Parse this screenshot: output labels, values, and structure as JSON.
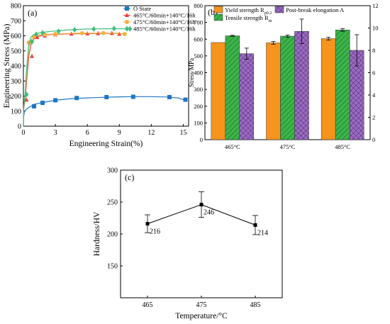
{
  "chart_data": [
    {
      "panel": "(a)",
      "type": "line",
      "xlabel": "Engineering Strain(%)",
      "ylabel": "Engineering Stress (MPa)",
      "xlim": [
        0,
        15.5
      ],
      "ylim": [
        0,
        800
      ],
      "xticks": [
        0,
        3,
        6,
        9,
        12,
        15
      ],
      "yticks": [
        0,
        100,
        200,
        300,
        400,
        500,
        600,
        700,
        800
      ],
      "legend_position": "top-right",
      "series": [
        {
          "name": "O State",
          "color": "#1f77c4",
          "marker": "square",
          "x": [
            0,
            0.02,
            0.1,
            0.3,
            1,
            2,
            3,
            4.5,
            6,
            7.5,
            9,
            10.5,
            12,
            13.5,
            14.5,
            15
          ],
          "y": [
            0,
            60,
            100,
            115,
            145,
            160,
            172,
            183,
            188,
            192,
            195,
            196,
            196,
            194,
            188,
            176
          ],
          "marker_x": [
            1.0,
            1.8,
            3.0,
            5.0,
            7.8,
            10.3,
            13.7,
            15.2
          ],
          "marker_y": [
            132,
            155,
            172,
            187,
            193,
            195,
            193,
            176
          ]
        },
        {
          "name": "465°C/60min+140°C/16h",
          "color": "#e8423a",
          "marker": "triangle",
          "x": [
            0,
            0.03,
            0.15,
            0.3,
            0.5,
            0.7,
            1,
            1.5,
            2,
            3,
            4,
            5,
            6,
            7,
            8,
            9
          ],
          "y": [
            0,
            120,
            170,
            300,
            460,
            540,
            580,
            598,
            605,
            610,
            612,
            614,
            615,
            616,
            617,
            616
          ],
          "marker_x": [
            0.3,
            0.8,
            1.3,
            2.0,
            3.0,
            4.5,
            6.0,
            7.0,
            8.3,
            9.0
          ],
          "marker_y": [
            175,
            465,
            590,
            600,
            608,
            613,
            615,
            616,
            617,
            612
          ]
        },
        {
          "name": "475°C/60min+140°C/16h",
          "color": "#f5b041",
          "marker": "circle",
          "x": [
            0,
            0.03,
            0.15,
            0.3,
            0.5,
            0.7,
            1,
            1.5,
            2,
            3,
            4,
            5,
            6,
            7,
            8,
            9,
            9.5
          ],
          "y": [
            0,
            120,
            200,
            350,
            520,
            570,
            595,
            605,
            608,
            612,
            615,
            617,
            618,
            618,
            618,
            617,
            612
          ],
          "marker_x": [
            0.5,
            1.0,
            2.0,
            3.0,
            5.5,
            7.5,
            9.5
          ],
          "marker_y": [
            555,
            595,
            608,
            612,
            617,
            618,
            612
          ]
        },
        {
          "name": "485°C/60min+140°C/16h",
          "color": "#3dbf7a",
          "marker": "diamond",
          "x": [
            0,
            0.03,
            0.15,
            0.3,
            0.5,
            0.7,
            1,
            1.5,
            2,
            3,
            4,
            5,
            6,
            7,
            8,
            9,
            10
          ],
          "y": [
            0,
            130,
            210,
            380,
            540,
            590,
            610,
            620,
            625,
            632,
            638,
            642,
            645,
            646,
            647,
            647,
            646
          ],
          "marker_x": [
            0.3,
            0.8,
            1.2,
            1.8,
            3.3,
            4.8,
            6.6,
            8.5,
            10.0
          ],
          "marker_y": [
            210,
            560,
            610,
            620,
            630,
            640,
            645,
            648,
            646
          ]
        }
      ]
    },
    {
      "panel": "(b)",
      "type": "bar",
      "categories": [
        "465°C",
        "475°C",
        "485°C"
      ],
      "ylabel": "Stress/MPa",
      "ylim": [
        0,
        800
      ],
      "yticks": [
        0,
        100,
        200,
        300,
        400,
        500,
        600,
        700,
        800
      ],
      "y2lim": [
        0,
        12
      ],
      "y2ticks": [
        0,
        2,
        4,
        6,
        8,
        10,
        12
      ],
      "legend_position": "top",
      "series": [
        {
          "name_main": "Yield strength R",
          "name_sub": "p0.2",
          "axis": "left",
          "color": "#f7941d",
          "pattern": "solid",
          "values": [
            580,
            578,
            603
          ],
          "errors": [
            0,
            8,
            8
          ]
        },
        {
          "name_main": "Tensile strength R",
          "name_sub": "m",
          "axis": "left",
          "color": "#3cb54a",
          "pattern": "hatch",
          "values": [
            620,
            618,
            655
          ],
          "errors": [
            3,
            6,
            8
          ]
        },
        {
          "name_main": "Post-break elongation A",
          "name_sub": "",
          "axis": "right",
          "color": "#9b6bc2",
          "pattern": "cross",
          "values": [
            7.7,
            9.7,
            8.0
          ],
          "errors": [
            0.5,
            1.1,
            1.4
          ]
        }
      ]
    },
    {
      "panel": "(c)",
      "type": "line",
      "xlabel": "Temperature/°C",
      "ylabel": "Hardness/HV",
      "xlim": [
        460,
        490
      ],
      "xticks": [
        465,
        475,
        485
      ],
      "ylim": [
        100,
        300
      ],
      "yticks": [
        150,
        200,
        250,
        300
      ],
      "x": [
        465,
        475,
        485
      ],
      "y": [
        216,
        246,
        214
      ],
      "errors": [
        14,
        20,
        15
      ],
      "labels": [
        "216",
        "246",
        "214"
      ]
    }
  ]
}
